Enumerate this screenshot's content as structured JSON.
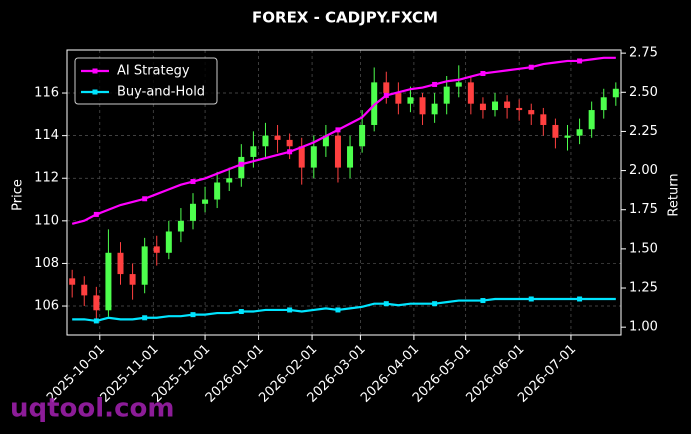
{
  "chart_data": {
    "type": "candlestick",
    "title": "FOREX - CADJPY.FXCM",
    "ylabel": "Price",
    "y2label": "Return",
    "watermark": "uqtool.com",
    "x": [
      "2025-09-15",
      "2025-09-22",
      "2025-09-29",
      "2025-10-06",
      "2025-10-13",
      "2025-10-20",
      "2025-10-27",
      "2025-11-03",
      "2025-11-10",
      "2025-11-17",
      "2025-11-24",
      "2025-12-01",
      "2025-12-08",
      "2025-12-15",
      "2025-12-22",
      "2025-12-29",
      "2026-01-05",
      "2026-01-12",
      "2026-01-19",
      "2026-01-26",
      "2026-02-02",
      "2026-02-09",
      "2026-02-16",
      "2026-02-23",
      "2026-03-02",
      "2026-03-09",
      "2026-03-16",
      "2026-03-23",
      "2026-03-30",
      "2026-04-06",
      "2026-04-13",
      "2026-04-20",
      "2026-04-27",
      "2026-05-04",
      "2026-05-11",
      "2026-05-18",
      "2026-05-25",
      "2026-06-01",
      "2026-06-08",
      "2026-06-15",
      "2026-06-22",
      "2026-06-29",
      "2026-07-06",
      "2026-07-13",
      "2026-07-20",
      "2026-07-27"
    ],
    "open": [
      107.3,
      107.0,
      106.5,
      105.8,
      108.5,
      107.5,
      107.0,
      108.8,
      108.5,
      109.5,
      110.0,
      110.8,
      111.0,
      111.8,
      112.0,
      113.0,
      113.5,
      114.0,
      113.8,
      113.5,
      112.5,
      113.5,
      114.0,
      112.5,
      113.5,
      114.5,
      116.5,
      116.0,
      115.5,
      115.8,
      115.0,
      115.5,
      116.3,
      116.5,
      115.5,
      115.2,
      115.6,
      115.3,
      115.2,
      115.0,
      114.5,
      113.9,
      114.0,
      114.3,
      115.2,
      115.8
    ],
    "high": [
      107.7,
      107.4,
      106.9,
      109.6,
      109.0,
      108.0,
      109.2,
      109.3,
      110.0,
      110.6,
      111.3,
      111.6,
      112.3,
      112.5,
      113.6,
      114.2,
      114.6,
      114.5,
      114.1,
      113.9,
      114.0,
      114.5,
      114.3,
      114.0,
      115.2,
      117.2,
      117.0,
      116.5,
      116.3,
      116.0,
      116.0,
      116.8,
      117.3,
      116.8,
      115.8,
      116.0,
      115.9,
      115.7,
      115.5,
      115.3,
      114.8,
      114.5,
      114.8,
      115.6,
      116.2,
      116.5
    ],
    "low": [
      106.4,
      106.0,
      105.2,
      105.5,
      107.0,
      106.3,
      106.6,
      107.9,
      108.2,
      109.0,
      109.6,
      110.4,
      110.6,
      111.4,
      111.6,
      112.5,
      113.0,
      113.2,
      112.9,
      111.7,
      112.0,
      113.0,
      111.8,
      112.0,
      113.2,
      114.2,
      115.5,
      115.0,
      115.1,
      114.5,
      114.6,
      115.0,
      115.8,
      115.0,
      114.8,
      114.9,
      114.8,
      114.7,
      114.5,
      114.0,
      113.4,
      113.3,
      113.6,
      113.9,
      114.8,
      115.4
    ],
    "close": [
      107.0,
      106.5,
      105.8,
      108.5,
      107.5,
      107.0,
      108.8,
      108.5,
      109.5,
      110.0,
      110.8,
      111.0,
      111.8,
      112.0,
      113.0,
      113.5,
      114.0,
      113.8,
      113.5,
      112.5,
      113.5,
      114.0,
      112.5,
      113.5,
      114.5,
      116.5,
      116.0,
      115.5,
      115.8,
      115.0,
      115.5,
      116.3,
      116.5,
      115.5,
      115.2,
      115.6,
      115.3,
      115.2,
      115.0,
      114.5,
      113.9,
      114.0,
      114.3,
      115.2,
      115.8,
      116.2
    ],
    "up_color": "#4dff4d",
    "down_color": "#ff4040",
    "series": [
      {
        "name": "AI Strategy",
        "color": "#ff00ff",
        "axis": "y2",
        "values": [
          1.66,
          1.68,
          1.72,
          1.75,
          1.78,
          1.8,
          1.82,
          1.85,
          1.88,
          1.91,
          1.93,
          1.95,
          1.98,
          2.01,
          2.04,
          2.06,
          2.08,
          2.1,
          2.12,
          2.15,
          2.18,
          2.22,
          2.26,
          2.3,
          2.34,
          2.42,
          2.48,
          2.5,
          2.52,
          2.53,
          2.55,
          2.57,
          2.58,
          2.6,
          2.62,
          2.63,
          2.64,
          2.65,
          2.66,
          2.68,
          2.69,
          2.7,
          2.7,
          2.71,
          2.72,
          2.72
        ]
      },
      {
        "name": "Buy-and-Hold",
        "color": "#00e5ff",
        "axis": "y2",
        "values": [
          1.05,
          1.05,
          1.04,
          1.06,
          1.05,
          1.05,
          1.06,
          1.06,
          1.07,
          1.07,
          1.08,
          1.08,
          1.09,
          1.09,
          1.1,
          1.1,
          1.11,
          1.11,
          1.11,
          1.1,
          1.11,
          1.12,
          1.11,
          1.12,
          1.13,
          1.15,
          1.15,
          1.14,
          1.15,
          1.15,
          1.15,
          1.16,
          1.17,
          1.17,
          1.17,
          1.18,
          1.18,
          1.18,
          1.18,
          1.18,
          1.18,
          1.18,
          1.18,
          1.18,
          1.18,
          1.18
        ]
      }
    ],
    "xlim": [
      "2025-09-12",
      "2026-07-30"
    ],
    "xticks": [
      "2025-10-01",
      "2025-11-01",
      "2025-12-01",
      "2026-01-01",
      "2026-02-01",
      "2026-03-01",
      "2026-04-01",
      "2026-05-01",
      "2026-06-01",
      "2026-07-01"
    ],
    "ylim": [
      104.64,
      118.02
    ],
    "yticks": [
      106,
      108,
      110,
      112,
      114,
      116
    ],
    "y2lim": [
      0.95,
      2.77
    ],
    "y2ticks": [
      {
        "value": 1,
        "label": "1.00"
      },
      1.25,
      {
        "value": 1.5,
        "label": "1.50"
      },
      1.75,
      {
        "value": 2,
        "label": "2.00"
      },
      2.25,
      {
        "value": 2.5,
        "label": "2.50"
      },
      2.75
    ],
    "grid": true,
    "legend": "upper left"
  }
}
